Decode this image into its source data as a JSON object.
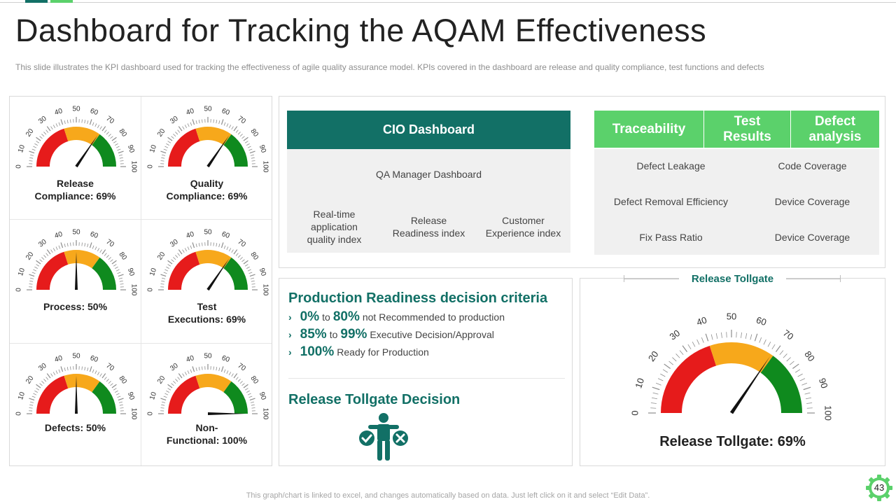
{
  "title": "Dashboard for Tracking the AQAM Effectiveness",
  "subtitle": "This slide illustrates the KPI dashboard used for tracking the effectiveness of agile quality assurance model. KPIs covered in the dashboard are release and quality compliance, test functions and defects",
  "colors": {
    "teal": "#127066",
    "green": "#5bd16b",
    "gauge_red": "#e61b1b",
    "gauge_orange": "#f7a81b",
    "gauge_green": "#0f8a1e"
  },
  "gauge_ticks": [
    "0",
    "10",
    "20",
    "30",
    "40",
    "50",
    "60",
    "70",
    "80",
    "90",
    "100"
  ],
  "gauges": [
    {
      "label_line1": "Release",
      "label_line2": "Compliance: 69%",
      "value": 69
    },
    {
      "label_line1": "Quality",
      "label_line2": "Compliance: 69%",
      "value": 69
    },
    {
      "label_line1": "",
      "label_line2": "Process: 50%",
      "value": 50
    },
    {
      "label_line1": "Test",
      "label_line2": "Executions: 69%",
      "value": 69
    },
    {
      "label_line1": "",
      "label_line2": "Defects: 50%",
      "value": 50
    },
    {
      "label_line1": "Non-",
      "label_line2": "Functional: 100%",
      "value": 100
    }
  ],
  "cio": {
    "header": "CIO Dashboard",
    "qa_title": "QA Manager  Dashboard",
    "columns": [
      {
        "l1": "Real-time",
        "l2": "application",
        "l3": "quality index"
      },
      {
        "l1": "Release",
        "l2": "Readiness index",
        "l3": ""
      },
      {
        "l1": "Customer",
        "l2": "Experience index",
        "l3": ""
      }
    ]
  },
  "trace": {
    "headers": [
      {
        "l1": "Traceability",
        "l2": ""
      },
      {
        "l1": "Test",
        "l2": "Results"
      },
      {
        "l1": "Defect",
        "l2": "analysis"
      }
    ],
    "left": [
      "Defect Leakage",
      "Defect Removal Efficiency",
      "Fix Pass Ratio"
    ],
    "right": [
      "Code Coverage",
      "Device Coverage",
      "Device Coverage"
    ]
  },
  "criteria": {
    "title": "Production Readiness decision criteria",
    "rows": [
      {
        "from": "0%",
        "to_word": "to",
        "to": "80%",
        "text": "not Recommended to production"
      },
      {
        "from": "85%",
        "to_word": "to",
        "to": "99%",
        "text": "Executive Decision/Approval"
      },
      {
        "from": "100%",
        "to_word": "",
        "to": "",
        "text": "Ready for Production"
      }
    ],
    "decision_title": "Release Tollgate  Decision",
    "decision_icon": "person-accept-reject-icon"
  },
  "tollgate": {
    "title": "Release Tollgate",
    "value_text": "Release Tollgate:  69%",
    "value": 69
  },
  "footer": "This graph/chart is linked to excel, and changes automatically based on data. Just left click on it and select “Edit Data”.",
  "page_number": "43"
}
